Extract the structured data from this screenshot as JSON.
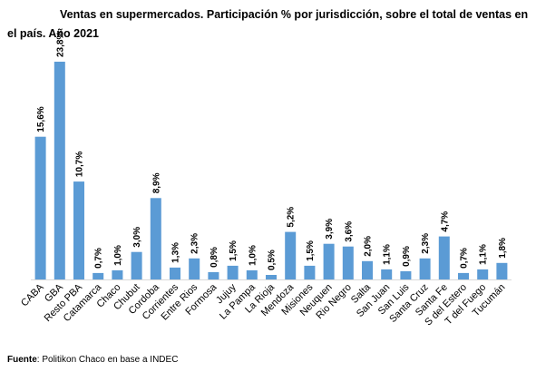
{
  "title": "Ventas en supermercados. Participación % por jurisdicción, sobre el total de ventas en el país. Año 2021",
  "source": {
    "label": "Fuente",
    "text": ": Politikon Chaco en base a INDEC"
  },
  "colors": {
    "bar": "#5b9bd5",
    "axis": "#d9d9d9"
  },
  "chart_data": {
    "type": "bar",
    "title": "Ventas en supermercados. Participación % por jurisdicción, sobre el total de ventas en el país. Año 2021",
    "xlabel": "",
    "ylabel": "",
    "ylim": [
      0,
      25
    ],
    "grid": false,
    "categories": [
      "CABA",
      "GBA",
      "Resto PBA",
      "Catamarca",
      "Chaco",
      "Chubut",
      "Cordoba",
      "Corrientes",
      "Entre Rios",
      "Formosa",
      "Jujuy",
      "La Pampa",
      "La Rioja",
      "Mendoza",
      "Misiones",
      "Neuquen",
      "Rio Negro",
      "Salta",
      "San Juan",
      "San Luis",
      "Santa Cruz",
      "Santa Fe",
      "S del Estero",
      "T del Fuego",
      "Tucumán"
    ],
    "values": [
      15.6,
      23.8,
      10.7,
      0.7,
      1.0,
      3.0,
      8.9,
      1.3,
      2.3,
      0.8,
      1.5,
      1.0,
      0.5,
      5.2,
      1.5,
      3.9,
      3.6,
      2.0,
      1.1,
      0.9,
      2.3,
      4.7,
      0.7,
      1.1,
      1.8
    ],
    "data_labels": [
      "15,6%",
      "23,8%",
      "10,7%",
      "0,7%",
      "1,0%",
      "3,0%",
      "8,9%",
      "1,3%",
      "2,3%",
      "0,8%",
      "1,5%",
      "1,0%",
      "0,5%",
      "5,2%",
      "1,5%",
      "3,9%",
      "3,6%",
      "2,0%",
      "1,1%",
      "0,9%",
      "2,3%",
      "4,7%",
      "0,7%",
      "1,1%",
      "1,8%"
    ]
  }
}
